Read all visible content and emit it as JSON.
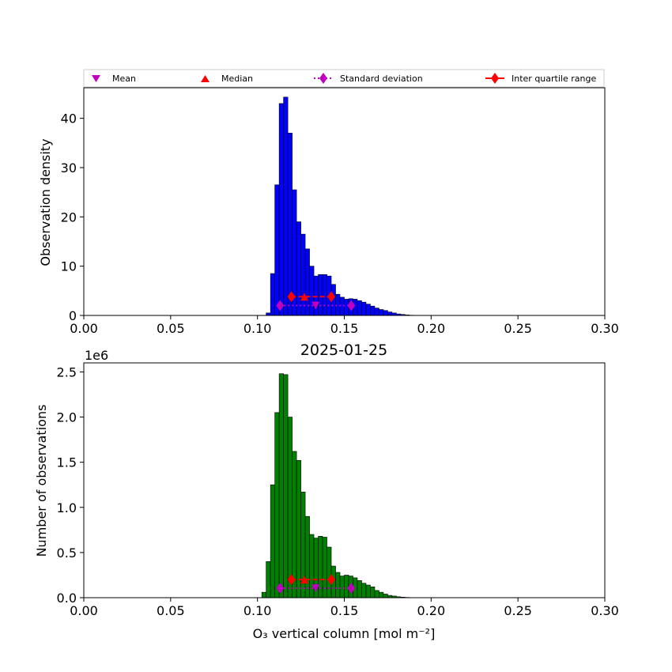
{
  "chart_data": [
    {
      "type": "bar",
      "title": "",
      "xlabel": "",
      "ylabel": "Observation density",
      "xlim": [
        0.0,
        0.3
      ],
      "ylim": [
        0,
        46.2
      ],
      "x_ticks": [
        "0.00",
        "0.05",
        "0.10",
        "0.15",
        "0.20",
        "0.25",
        "0.30"
      ],
      "y_ticks": [
        "0",
        "10",
        "20",
        "30",
        "40"
      ],
      "bin_start": 0.105,
      "bin_width": 0.0025,
      "bar_color": "#0000ff",
      "values": [
        0.5,
        8.5,
        26.5,
        43.0,
        44.3,
        37.0,
        25.5,
        19.0,
        16.5,
        13.5,
        10.0,
        8.0,
        8.3,
        8.3,
        8.0,
        6.3,
        4.3,
        3.7,
        3.3,
        3.4,
        3.3,
        3.0,
        2.7,
        2.3,
        1.9,
        1.5,
        1.2,
        1.0,
        0.7,
        0.5,
        0.3,
        0.2,
        0.1,
        0.05,
        0.03,
        0.02
      ],
      "statistics": {
        "mean": {
          "x": 0.1335,
          "y": 2.0
        },
        "median": {
          "x": 0.127,
          "y": 3.8
        },
        "std_range": [
          0.113,
          0.154
        ],
        "std_y": 2.0,
        "iqr_range": [
          0.1195,
          0.1425
        ],
        "iqr_y": 3.8
      },
      "legend": {
        "placement": "top",
        "entries": [
          "Mean",
          "Median",
          "Standard deviation",
          "Inter quartile range"
        ]
      }
    },
    {
      "type": "bar",
      "title": "2025-01-25",
      "xlabel": "O₃ vertical column [mol m⁻²]",
      "ylabel": "Number of observations",
      "y_offset_label": "1e6",
      "xlim": [
        0.0,
        0.3
      ],
      "ylim": [
        0,
        2.6
      ],
      "x_ticks": [
        "0.00",
        "0.05",
        "0.10",
        "0.15",
        "0.20",
        "0.25",
        "0.30"
      ],
      "y_ticks": [
        "0.0",
        "0.5",
        "1.0",
        "1.5",
        "2.0",
        "2.5"
      ],
      "bin_start": 0.1025,
      "bin_width": 0.0025,
      "bar_color": "#008000",
      "values": [
        0.06,
        0.4,
        1.25,
        2.05,
        2.48,
        2.47,
        2.0,
        1.62,
        1.52,
        1.17,
        0.9,
        0.7,
        0.66,
        0.68,
        0.67,
        0.56,
        0.35,
        0.28,
        0.24,
        0.25,
        0.24,
        0.22,
        0.19,
        0.16,
        0.14,
        0.12,
        0.08,
        0.06,
        0.04,
        0.025,
        0.018,
        0.01,
        0.006,
        0.003
      ],
      "statistics": {
        "mean": {
          "x": 0.1335,
          "y": 0.105
        },
        "median": {
          "x": 0.127,
          "y": 0.2
        },
        "std_range": [
          0.113,
          0.154
        ],
        "std_y": 0.105,
        "iqr_range": [
          0.1195,
          0.1425
        ],
        "iqr_y": 0.2
      }
    }
  ],
  "colors": {
    "mean_marker": "#bf00bf",
    "median_marker": "#ff0000",
    "std_marker": "#bf00bf",
    "iqr_marker": "#ff0000",
    "bar_edge": "#000000"
  }
}
